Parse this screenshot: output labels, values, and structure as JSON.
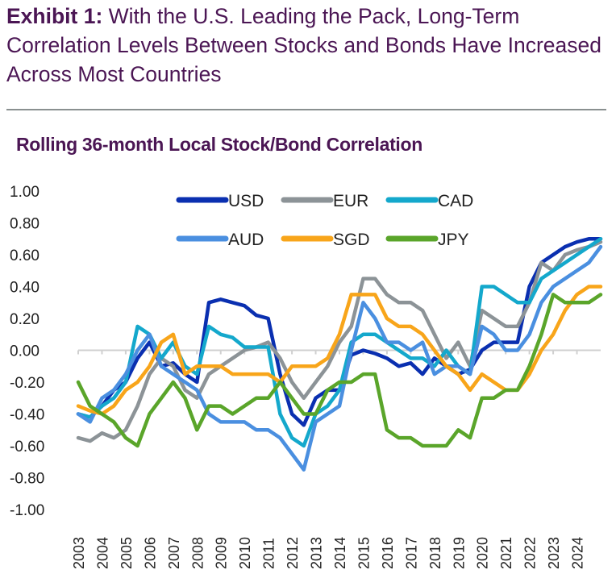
{
  "header": {
    "exhibit_label": "Exhibit 1:",
    "title": "With the U.S. Leading the Pack, Long-Term Correlation Levels Between Stocks and Bonds Have Increased Across Most Countries"
  },
  "chart_data": {
    "type": "line",
    "title": "Rolling 36-month Local Stock/Bond Correlation",
    "xlabel": "",
    "ylabel": "",
    "ylim": [
      -1.0,
      1.0
    ],
    "xlim": [
      2003,
      2025
    ],
    "yticks": [
      "1.00",
      "0.80",
      "0.60",
      "0.40",
      "0.20",
      "0.00",
      "-0.20",
      "-0.40",
      "-0.60",
      "-0.80",
      "-1.00"
    ],
    "xticks": [
      "2003",
      "2004",
      "2005",
      "2006",
      "2007",
      "2008",
      "2009",
      "2010",
      "2011",
      "2012",
      "2013",
      "2014",
      "2015",
      "2016",
      "2017",
      "2018",
      "2019",
      "2020",
      "2021",
      "2022",
      "2023",
      "2024"
    ],
    "legend_placement": "top-center",
    "grid": false,
    "x": [
      2003.0,
      2003.5,
      2004.0,
      2004.5,
      2005.0,
      2005.5,
      2006.0,
      2006.5,
      2007.0,
      2007.5,
      2008.0,
      2008.5,
      2009.0,
      2009.5,
      2010.0,
      2010.5,
      2011.0,
      2011.5,
      2012.0,
      2012.5,
      2013.0,
      2013.5,
      2014.0,
      2014.5,
      2015.0,
      2015.5,
      2016.0,
      2016.5,
      2017.0,
      2017.5,
      2018.0,
      2018.5,
      2019.0,
      2019.5,
      2020.0,
      2020.5,
      2021.0,
      2021.5,
      2022.0,
      2022.5,
      2023.0,
      2023.5,
      2024.0,
      2024.5,
      2025.0
    ],
    "series": [
      {
        "name": "USD",
        "color": "#0a2fb0",
        "values": [
          -0.4,
          -0.42,
          -0.35,
          -0.25,
          -0.2,
          -0.05,
          0.05,
          -0.1,
          -0.08,
          -0.15,
          -0.2,
          0.3,
          0.32,
          0.3,
          0.28,
          0.22,
          0.2,
          -0.15,
          -0.4,
          -0.47,
          -0.3,
          -0.25,
          -0.25,
          -0.03,
          0.0,
          -0.02,
          -0.05,
          -0.1,
          -0.08,
          -0.15,
          -0.05,
          -0.1,
          -0.15,
          -0.12,
          0.0,
          0.05,
          0.05,
          0.05,
          0.4,
          0.55,
          0.6,
          0.65,
          0.68,
          0.7,
          0.7
        ]
      },
      {
        "name": "EUR",
        "color": "#8c9397",
        "values": [
          -0.55,
          -0.57,
          -0.52,
          -0.55,
          -0.5,
          -0.35,
          -0.15,
          -0.05,
          -0.1,
          -0.25,
          -0.3,
          -0.15,
          -0.1,
          -0.05,
          0.0,
          0.02,
          0.05,
          -0.05,
          -0.2,
          -0.3,
          -0.2,
          -0.1,
          0.05,
          0.15,
          0.45,
          0.45,
          0.35,
          0.3,
          0.3,
          0.25,
          0.1,
          -0.05,
          0.05,
          -0.1,
          0.25,
          0.2,
          0.15,
          0.15,
          0.3,
          0.55,
          0.5,
          0.6,
          0.63,
          0.65,
          0.68
        ]
      },
      {
        "name": "CAD",
        "color": "#14a8cc",
        "values": [
          -0.4,
          -0.42,
          -0.35,
          -0.3,
          -0.2,
          0.15,
          0.1,
          -0.05,
          0.05,
          -0.1,
          -0.15,
          0.15,
          0.1,
          0.08,
          0.02,
          0.02,
          0.02,
          -0.4,
          -0.55,
          -0.6,
          -0.4,
          -0.35,
          -0.25,
          0.05,
          0.1,
          0.1,
          0.05,
          0.0,
          -0.05,
          -0.05,
          -0.1,
          0.0,
          -0.1,
          -0.15,
          0.4,
          0.4,
          0.35,
          0.3,
          0.3,
          0.45,
          0.5,
          0.55,
          0.6,
          0.65,
          0.7
        ]
      },
      {
        "name": "AUD",
        "color": "#4a8fe0",
        "values": [
          -0.4,
          -0.45,
          -0.3,
          -0.25,
          -0.15,
          0.0,
          0.1,
          -0.1,
          -0.15,
          -0.2,
          -0.25,
          -0.4,
          -0.45,
          -0.45,
          -0.45,
          -0.5,
          -0.5,
          -0.55,
          -0.65,
          -0.75,
          -0.45,
          -0.4,
          -0.35,
          0.0,
          0.3,
          0.2,
          0.05,
          0.05,
          0.0,
          0.05,
          -0.15,
          -0.1,
          -0.1,
          -0.15,
          0.15,
          0.1,
          0.0,
          0.0,
          0.1,
          0.3,
          0.4,
          0.45,
          0.5,
          0.55,
          0.65
        ]
      },
      {
        "name": "SGD",
        "color": "#f8a51a",
        "values": [
          -0.35,
          -0.38,
          -0.4,
          -0.35,
          -0.25,
          -0.2,
          -0.1,
          0.05,
          0.1,
          -0.15,
          -0.1,
          -0.1,
          -0.1,
          -0.15,
          -0.15,
          -0.15,
          -0.15,
          -0.2,
          -0.1,
          -0.1,
          -0.1,
          -0.05,
          0.1,
          0.35,
          0.35,
          0.35,
          0.2,
          0.15,
          0.15,
          0.1,
          0.0,
          -0.1,
          -0.15,
          -0.25,
          -0.15,
          -0.2,
          -0.25,
          -0.25,
          -0.15,
          0.0,
          0.1,
          0.25,
          0.35,
          0.4,
          0.4
        ]
      },
      {
        "name": "JPY",
        "color": "#5aa52a",
        "values": [
          -0.2,
          -0.35,
          -0.4,
          -0.45,
          -0.55,
          -0.6,
          -0.4,
          -0.3,
          -0.2,
          -0.3,
          -0.5,
          -0.35,
          -0.35,
          -0.4,
          -0.35,
          -0.3,
          -0.3,
          -0.2,
          -0.3,
          -0.4,
          -0.4,
          -0.25,
          -0.2,
          -0.2,
          -0.15,
          -0.15,
          -0.5,
          -0.55,
          -0.55,
          -0.6,
          -0.6,
          -0.6,
          -0.5,
          -0.55,
          -0.3,
          -0.3,
          -0.25,
          -0.25,
          -0.1,
          0.1,
          0.35,
          0.3,
          0.3,
          0.3,
          0.35
        ]
      }
    ]
  }
}
